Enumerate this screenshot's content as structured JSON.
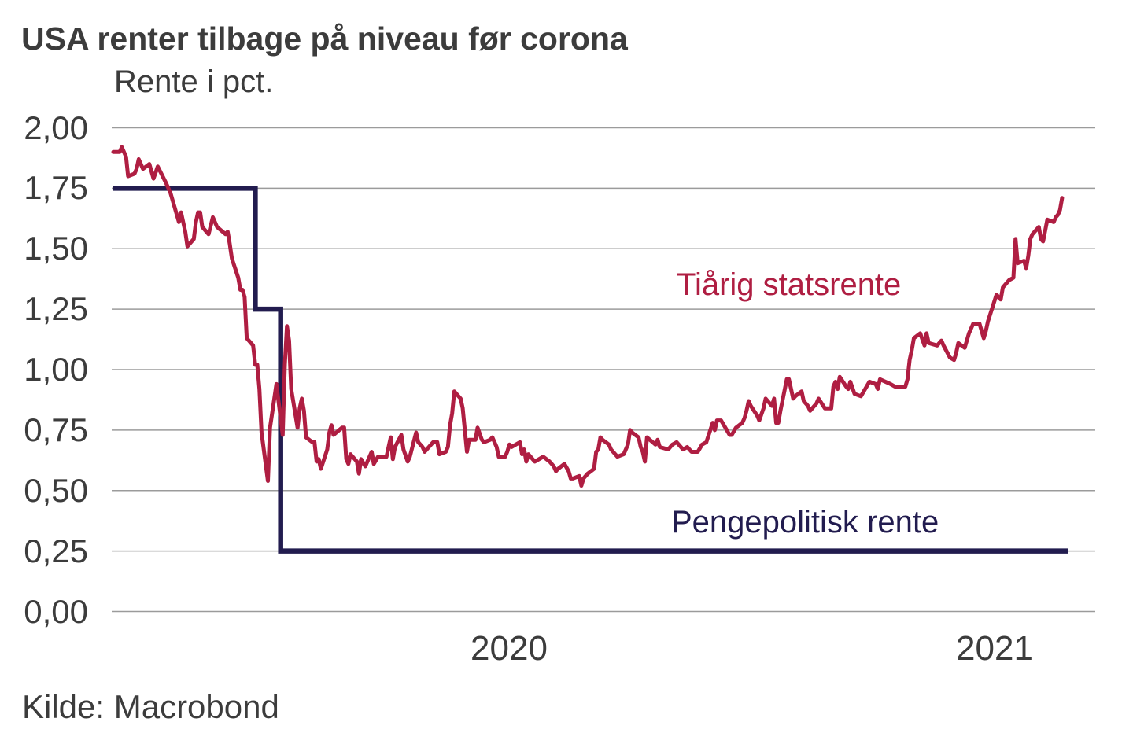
{
  "title": "USA renter tilbage på niveau før corona",
  "subtitle": "Rente i pct.",
  "source": "Kilde: Macrobond",
  "colors": {
    "ten_year_red": "#AF1E42",
    "policy_navy": "#221C4F",
    "text": "#3C3C3C",
    "grid": "#9B9B9B",
    "background": "#FFFFFF"
  },
  "chart_data": {
    "type": "line",
    "title": "USA renter tilbage på niveau før corona",
    "xlabel": "",
    "ylabel": "Rente i pct.",
    "ylim": [
      0,
      2
    ],
    "y_tick_step": 0.25,
    "grid": "horizontal",
    "legend_position": "inline-labels",
    "decimal_separator": ",",
    "x_domain": [
      "2019-12-27",
      "2021-03-22"
    ],
    "y_ticks": [
      {
        "label": "2,00",
        "value": 2.0
      },
      {
        "label": "1,75",
        "value": 1.75
      },
      {
        "label": "1,50",
        "value": 1.5
      },
      {
        "label": "1,25",
        "value": 1.25
      },
      {
        "label": "1,00",
        "value": 1.0
      },
      {
        "label": "0,75",
        "value": 0.75
      },
      {
        "label": "0,50",
        "value": 0.5
      },
      {
        "label": "0,25",
        "value": 0.25
      },
      {
        "label": "0,00",
        "value": 0.0
      }
    ],
    "x_ticks": [
      {
        "label": "2020",
        "anchor": "2020-07-01"
      },
      {
        "label": "2021",
        "anchor": "2021-02-15"
      }
    ],
    "series": [
      {
        "name": "Tiårig statsrente",
        "label": "Tiårig statsrente",
        "color": "#AF1E42",
        "draw": "line",
        "stroke_width": 5,
        "points": [
          [
            "2019-12-27",
            1.9
          ],
          [
            "2019-12-30",
            1.9
          ],
          [
            "2019-12-31",
            1.92
          ],
          [
            "2020-01-02",
            1.88
          ],
          [
            "2020-01-03",
            1.8
          ],
          [
            "2020-01-06",
            1.81
          ],
          [
            "2020-01-07",
            1.83
          ],
          [
            "2020-01-08",
            1.87
          ],
          [
            "2020-01-09",
            1.85
          ],
          [
            "2020-01-10",
            1.83
          ],
          [
            "2020-01-13",
            1.85
          ],
          [
            "2020-01-15",
            1.79
          ],
          [
            "2020-01-17",
            1.84
          ],
          [
            "2020-01-21",
            1.77
          ],
          [
            "2020-01-23",
            1.73
          ],
          [
            "2020-01-24",
            1.7
          ],
          [
            "2020-01-27",
            1.61
          ],
          [
            "2020-01-28",
            1.65
          ],
          [
            "2020-01-30",
            1.57
          ],
          [
            "2020-01-31",
            1.51
          ],
          [
            "2020-02-03",
            1.54
          ],
          [
            "2020-02-04",
            1.61
          ],
          [
            "2020-02-05",
            1.65
          ],
          [
            "2020-02-06",
            1.65
          ],
          [
            "2020-02-07",
            1.59
          ],
          [
            "2020-02-10",
            1.56
          ],
          [
            "2020-02-12",
            1.63
          ],
          [
            "2020-02-14",
            1.59
          ],
          [
            "2020-02-18",
            1.56
          ],
          [
            "2020-02-19",
            1.57
          ],
          [
            "2020-02-20",
            1.52
          ],
          [
            "2020-02-21",
            1.46
          ],
          [
            "2020-02-24",
            1.38
          ],
          [
            "2020-02-25",
            1.33
          ],
          [
            "2020-02-26",
            1.33
          ],
          [
            "2020-02-27",
            1.3
          ],
          [
            "2020-02-28",
            1.13
          ],
          [
            "2020-03-02",
            1.1
          ],
          [
            "2020-03-03",
            1.02
          ],
          [
            "2020-03-04",
            1.02
          ],
          [
            "2020-03-05",
            0.92
          ],
          [
            "2020-03-06",
            0.74
          ],
          [
            "2020-03-09",
            0.54
          ],
          [
            "2020-03-10",
            0.76
          ],
          [
            "2020-03-11",
            0.82
          ],
          [
            "2020-03-12",
            0.88
          ],
          [
            "2020-03-13",
            0.94
          ],
          [
            "2020-03-16",
            0.73
          ],
          [
            "2020-03-17",
            1.02
          ],
          [
            "2020-03-18",
            1.18
          ],
          [
            "2020-03-19",
            1.12
          ],
          [
            "2020-03-20",
            0.92
          ],
          [
            "2020-03-23",
            0.76
          ],
          [
            "2020-03-24",
            0.84
          ],
          [
            "2020-03-25",
            0.88
          ],
          [
            "2020-03-26",
            0.83
          ],
          [
            "2020-03-27",
            0.72
          ],
          [
            "2020-03-30",
            0.7
          ],
          [
            "2020-03-31",
            0.7
          ],
          [
            "2020-04-01",
            0.62
          ],
          [
            "2020-04-02",
            0.63
          ],
          [
            "2020-04-03",
            0.59
          ],
          [
            "2020-04-06",
            0.67
          ],
          [
            "2020-04-07",
            0.74
          ],
          [
            "2020-04-08",
            0.77
          ],
          [
            "2020-04-09",
            0.73
          ],
          [
            "2020-04-13",
            0.76
          ],
          [
            "2020-04-14",
            0.76
          ],
          [
            "2020-04-15",
            0.63
          ],
          [
            "2020-04-16",
            0.61
          ],
          [
            "2020-04-17",
            0.65
          ],
          [
            "2020-04-20",
            0.62
          ],
          [
            "2020-04-21",
            0.57
          ],
          [
            "2020-04-22",
            0.63
          ],
          [
            "2020-04-24",
            0.6
          ],
          [
            "2020-04-27",
            0.66
          ],
          [
            "2020-04-28",
            0.61
          ],
          [
            "2020-04-30",
            0.64
          ],
          [
            "2020-05-04",
            0.64
          ],
          [
            "2020-05-06",
            0.72
          ],
          [
            "2020-05-07",
            0.63
          ],
          [
            "2020-05-08",
            0.68
          ],
          [
            "2020-05-11",
            0.73
          ],
          [
            "2020-05-12",
            0.67
          ],
          [
            "2020-05-14",
            0.62
          ],
          [
            "2020-05-15",
            0.64
          ],
          [
            "2020-05-18",
            0.74
          ],
          [
            "2020-05-19",
            0.7
          ],
          [
            "2020-05-21",
            0.68
          ],
          [
            "2020-05-22",
            0.66
          ],
          [
            "2020-05-26",
            0.7
          ],
          [
            "2020-05-28",
            0.7
          ],
          [
            "2020-05-29",
            0.65
          ],
          [
            "2020-06-01",
            0.66
          ],
          [
            "2020-06-02",
            0.68
          ],
          [
            "2020-06-03",
            0.77
          ],
          [
            "2020-06-04",
            0.82
          ],
          [
            "2020-06-05",
            0.91
          ],
          [
            "2020-06-08",
            0.88
          ],
          [
            "2020-06-09",
            0.84
          ],
          [
            "2020-06-10",
            0.75
          ],
          [
            "2020-06-11",
            0.66
          ],
          [
            "2020-06-12",
            0.71
          ],
          [
            "2020-06-15",
            0.71
          ],
          [
            "2020-06-16",
            0.76
          ],
          [
            "2020-06-18",
            0.71
          ],
          [
            "2020-06-19",
            0.7
          ],
          [
            "2020-06-22",
            0.71
          ],
          [
            "2020-06-23",
            0.72
          ],
          [
            "2020-06-25",
            0.68
          ],
          [
            "2020-06-26",
            0.64
          ],
          [
            "2020-06-29",
            0.64
          ],
          [
            "2020-06-30",
            0.66
          ],
          [
            "2020-07-01",
            0.69
          ],
          [
            "2020-07-02",
            0.68
          ],
          [
            "2020-07-06",
            0.7
          ],
          [
            "2020-07-07",
            0.65
          ],
          [
            "2020-07-08",
            0.67
          ],
          [
            "2020-07-09",
            0.62
          ],
          [
            "2020-07-10",
            0.65
          ],
          [
            "2020-07-13",
            0.62
          ],
          [
            "2020-07-15",
            0.63
          ],
          [
            "2020-07-17",
            0.64
          ],
          [
            "2020-07-20",
            0.62
          ],
          [
            "2020-07-22",
            0.6
          ],
          [
            "2020-07-23",
            0.58
          ],
          [
            "2020-07-24",
            0.59
          ],
          [
            "2020-07-27",
            0.61
          ],
          [
            "2020-07-29",
            0.58
          ],
          [
            "2020-07-30",
            0.55
          ],
          [
            "2020-07-31",
            0.55
          ],
          [
            "2020-08-03",
            0.56
          ],
          [
            "2020-08-04",
            0.52
          ],
          [
            "2020-08-05",
            0.55
          ],
          [
            "2020-08-07",
            0.57
          ],
          [
            "2020-08-10",
            0.59
          ],
          [
            "2020-08-11",
            0.66
          ],
          [
            "2020-08-12",
            0.67
          ],
          [
            "2020-08-13",
            0.72
          ],
          [
            "2020-08-14",
            0.71
          ],
          [
            "2020-08-17",
            0.69
          ],
          [
            "2020-08-18",
            0.67
          ],
          [
            "2020-08-20",
            0.65
          ],
          [
            "2020-08-21",
            0.64
          ],
          [
            "2020-08-24",
            0.65
          ],
          [
            "2020-08-26",
            0.69
          ],
          [
            "2020-08-27",
            0.75
          ],
          [
            "2020-08-28",
            0.74
          ],
          [
            "2020-08-31",
            0.72
          ],
          [
            "2020-09-01",
            0.68
          ],
          [
            "2020-09-02",
            0.66
          ],
          [
            "2020-09-03",
            0.62
          ],
          [
            "2020-09-04",
            0.72
          ],
          [
            "2020-09-08",
            0.69
          ],
          [
            "2020-09-09",
            0.71
          ],
          [
            "2020-09-10",
            0.68
          ],
          [
            "2020-09-14",
            0.67
          ],
          [
            "2020-09-16",
            0.69
          ],
          [
            "2020-09-18",
            0.7
          ],
          [
            "2020-09-21",
            0.67
          ],
          [
            "2020-09-23",
            0.68
          ],
          [
            "2020-09-25",
            0.66
          ],
          [
            "2020-09-28",
            0.66
          ],
          [
            "2020-09-30",
            0.69
          ],
          [
            "2020-10-02",
            0.7
          ],
          [
            "2020-10-05",
            0.78
          ],
          [
            "2020-10-06",
            0.75
          ],
          [
            "2020-10-07",
            0.79
          ],
          [
            "2020-10-09",
            0.79
          ],
          [
            "2020-10-13",
            0.73
          ],
          [
            "2020-10-14",
            0.73
          ],
          [
            "2020-10-16",
            0.76
          ],
          [
            "2020-10-19",
            0.78
          ],
          [
            "2020-10-20",
            0.8
          ],
          [
            "2020-10-21",
            0.83
          ],
          [
            "2020-10-22",
            0.87
          ],
          [
            "2020-10-23",
            0.85
          ],
          [
            "2020-10-26",
            0.81
          ],
          [
            "2020-10-27",
            0.79
          ],
          [
            "2020-10-29",
            0.84
          ],
          [
            "2020-10-30",
            0.88
          ],
          [
            "2020-11-02",
            0.85
          ],
          [
            "2020-11-03",
            0.88
          ],
          [
            "2020-11-04",
            0.78
          ],
          [
            "2020-11-05",
            0.78
          ],
          [
            "2020-11-06",
            0.83
          ],
          [
            "2020-11-09",
            0.96
          ],
          [
            "2020-11-10",
            0.96
          ],
          [
            "2020-11-12",
            0.88
          ],
          [
            "2020-11-13",
            0.89
          ],
          [
            "2020-11-16",
            0.91
          ],
          [
            "2020-11-17",
            0.87
          ],
          [
            "2020-11-19",
            0.85
          ],
          [
            "2020-11-20",
            0.83
          ],
          [
            "2020-11-23",
            0.86
          ],
          [
            "2020-11-24",
            0.88
          ],
          [
            "2020-11-27",
            0.84
          ],
          [
            "2020-11-30",
            0.84
          ],
          [
            "2020-12-01",
            0.93
          ],
          [
            "2020-12-02",
            0.95
          ],
          [
            "2020-12-03",
            0.92
          ],
          [
            "2020-12-04",
            0.97
          ],
          [
            "2020-12-07",
            0.93
          ],
          [
            "2020-12-08",
            0.92
          ],
          [
            "2020-12-09",
            0.95
          ],
          [
            "2020-12-11",
            0.9
          ],
          [
            "2020-12-14",
            0.89
          ],
          [
            "2020-12-16",
            0.92
          ],
          [
            "2020-12-18",
            0.95
          ],
          [
            "2020-12-21",
            0.94
          ],
          [
            "2020-12-22",
            0.92
          ],
          [
            "2020-12-23",
            0.96
          ],
          [
            "2020-12-28",
            0.94
          ],
          [
            "2020-12-30",
            0.93
          ],
          [
            "2021-01-04",
            0.93
          ],
          [
            "2021-01-05",
            0.96
          ],
          [
            "2021-01-06",
            1.04
          ],
          [
            "2021-01-07",
            1.08
          ],
          [
            "2021-01-08",
            1.13
          ],
          [
            "2021-01-11",
            1.15
          ],
          [
            "2021-01-13",
            1.1
          ],
          [
            "2021-01-14",
            1.15
          ],
          [
            "2021-01-15",
            1.11
          ],
          [
            "2021-01-19",
            1.1
          ],
          [
            "2021-01-21",
            1.12
          ],
          [
            "2021-01-22",
            1.1
          ],
          [
            "2021-01-25",
            1.05
          ],
          [
            "2021-01-27",
            1.04
          ],
          [
            "2021-01-28",
            1.07
          ],
          [
            "2021-01-29",
            1.11
          ],
          [
            "2021-02-01",
            1.09
          ],
          [
            "2021-02-02",
            1.12
          ],
          [
            "2021-02-03",
            1.15
          ],
          [
            "2021-02-05",
            1.19
          ],
          [
            "2021-02-08",
            1.19
          ],
          [
            "2021-02-09",
            1.16
          ],
          [
            "2021-02-10",
            1.13
          ],
          [
            "2021-02-11",
            1.16
          ],
          [
            "2021-02-12",
            1.2
          ],
          [
            "2021-02-16",
            1.31
          ],
          [
            "2021-02-17",
            1.3
          ],
          [
            "2021-02-18",
            1.29
          ],
          [
            "2021-02-19",
            1.34
          ],
          [
            "2021-02-22",
            1.37
          ],
          [
            "2021-02-24",
            1.38
          ],
          [
            "2021-02-25",
            1.54
          ],
          [
            "2021-02-26",
            1.44
          ],
          [
            "2021-03-01",
            1.45
          ],
          [
            "2021-03-02",
            1.42
          ],
          [
            "2021-03-03",
            1.47
          ],
          [
            "2021-03-04",
            1.54
          ],
          [
            "2021-03-05",
            1.56
          ],
          [
            "2021-03-08",
            1.59
          ],
          [
            "2021-03-09",
            1.54
          ],
          [
            "2021-03-10",
            1.53
          ],
          [
            "2021-03-12",
            1.62
          ],
          [
            "2021-03-15",
            1.61
          ],
          [
            "2021-03-16",
            1.63
          ],
          [
            "2021-03-17",
            1.64
          ],
          [
            "2021-03-18",
            1.66
          ],
          [
            "2021-03-19",
            1.71
          ]
        ]
      },
      {
        "name": "Pengepolitisk rente",
        "label": "Pengepolitisk rente",
        "color": "#221C4F",
        "draw": "step",
        "stroke_width": 6.5,
        "points": [
          [
            "2019-12-27",
            1.75
          ],
          [
            "2020-03-03",
            1.25
          ],
          [
            "2020-03-15",
            0.25
          ],
          [
            "2021-03-22",
            0.25
          ]
        ]
      }
    ]
  }
}
